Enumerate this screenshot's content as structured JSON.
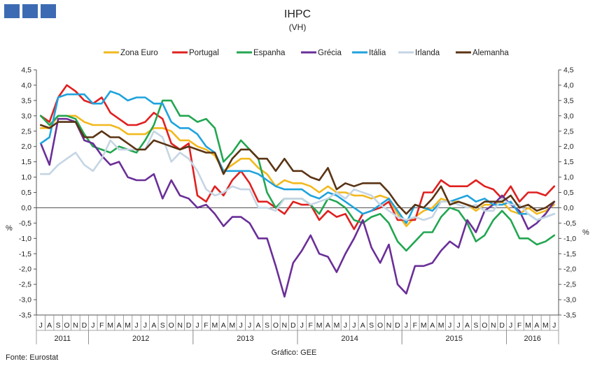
{
  "chart_data": {
    "type": "line",
    "title": "IHPC",
    "subtitle": "(VH)",
    "ylabel_left": "%",
    "ylabel_right": "%",
    "ylim": [
      -3.5,
      4.5
    ],
    "ytick_step": 0.5,
    "yticks": [
      "-3,5",
      "-3,0",
      "-2,5",
      "-2,0",
      "-1,5",
      "-1,0",
      "-0,5",
      "0,0",
      "0,5",
      "1,0",
      "1,5",
      "2,0",
      "2,5",
      "3,0",
      "3,5",
      "4,0",
      "4,5"
    ],
    "months": [
      "J",
      "A",
      "S",
      "O",
      "N",
      "D",
      "J",
      "F",
      "M",
      "A",
      "M",
      "J",
      "J",
      "A",
      "S",
      "O",
      "N",
      "D",
      "J",
      "F",
      "M",
      "A",
      "M",
      "J",
      "J",
      "A",
      "S",
      "O",
      "N",
      "D",
      "J",
      "F",
      "M",
      "A",
      "M",
      "J",
      "J",
      "A",
      "S",
      "O",
      "N",
      "D",
      "J",
      "F",
      "M",
      "A",
      "M",
      "J",
      "J",
      "A",
      "S",
      "O",
      "N",
      "D",
      "J",
      "F",
      "M",
      "A",
      "M",
      "J"
    ],
    "years": [
      {
        "label": "2011",
        "start": 0,
        "count": 6
      },
      {
        "label": "2012",
        "start": 6,
        "count": 12
      },
      {
        "label": "2013",
        "start": 18,
        "count": 12
      },
      {
        "label": "2014",
        "start": 30,
        "count": 12
      },
      {
        "label": "2015",
        "start": 42,
        "count": 12
      },
      {
        "label": "2016",
        "start": 54,
        "count": 6
      }
    ],
    "series": [
      {
        "name": "Zona Euro",
        "color": "#f2b81d",
        "values": [
          2.6,
          2.6,
          3.0,
          3.0,
          3.0,
          2.8,
          2.7,
          2.7,
          2.7,
          2.6,
          2.4,
          2.4,
          2.4,
          2.6,
          2.6,
          2.5,
          2.2,
          2.2,
          2.0,
          1.9,
          1.7,
          1.2,
          1.4,
          1.6,
          1.6,
          1.3,
          1.1,
          0.7,
          0.9,
          0.8,
          0.8,
          0.7,
          0.5,
          0.7,
          0.5,
          0.5,
          0.4,
          0.4,
          0.3,
          0.4,
          0.3,
          -0.2,
          -0.6,
          -0.3,
          -0.1,
          0.0,
          0.3,
          0.2,
          0.2,
          0.1,
          -0.1,
          0.1,
          0.1,
          0.2,
          -0.1,
          -0.2,
          0.0,
          -0.2,
          -0.1,
          0.1
        ]
      },
      {
        "name": "Portugal",
        "color": "#e02020",
        "values": [
          3.0,
          2.8,
          3.6,
          4.0,
          3.8,
          3.5,
          3.4,
          3.6,
          3.1,
          2.9,
          2.7,
          2.7,
          2.8,
          3.1,
          2.9,
          2.1,
          1.9,
          2.1,
          0.4,
          0.2,
          0.7,
          0.4,
          0.9,
          1.2,
          0.8,
          0.2,
          0.2,
          0.0,
          -0.2,
          0.2,
          0.1,
          0.1,
          -0.4,
          -0.1,
          -0.3,
          -0.2,
          -0.7,
          -0.2,
          -0.1,
          0.0,
          0.2,
          -0.4,
          -0.4,
          -0.4,
          0.5,
          0.5,
          0.9,
          0.7,
          0.7,
          0.7,
          0.9,
          0.7,
          0.6,
          0.3,
          0.7,
          0.2,
          0.5,
          0.5,
          0.4,
          0.7
        ]
      },
      {
        "name": "Espanha",
        "color": "#22a651",
        "values": [
          3.0,
          2.7,
          3.0,
          3.0,
          2.9,
          2.4,
          2.0,
          1.9,
          1.8,
          2.0,
          1.9,
          1.8,
          2.2,
          2.7,
          3.5,
          3.5,
          3.0,
          3.0,
          2.8,
          2.9,
          2.6,
          1.5,
          1.8,
          2.2,
          1.9,
          1.6,
          0.5,
          0.0,
          0.3,
          0.3,
          0.3,
          0.1,
          -0.2,
          0.3,
          0.2,
          0.0,
          -0.4,
          -0.5,
          -0.3,
          -0.2,
          -0.5,
          -1.1,
          -1.4,
          -1.1,
          -0.8,
          -0.8,
          -0.3,
          0.0,
          -0.1,
          -0.5,
          -1.1,
          -0.9,
          -0.4,
          -0.1,
          -0.4,
          -1.0,
          -1.0,
          -1.2,
          -1.1,
          -0.9
        ]
      },
      {
        "name": "Grécia",
        "color": "#6a2f98",
        "values": [
          2.1,
          1.4,
          2.9,
          2.9,
          2.8,
          2.2,
          2.1,
          1.7,
          1.4,
          1.5,
          1.0,
          0.9,
          0.9,
          1.1,
          0.3,
          0.9,
          0.4,
          0.3,
          0.0,
          0.1,
          -0.2,
          -0.6,
          -0.3,
          -0.3,
          -0.5,
          -1.0,
          -1.0,
          -1.9,
          -2.9,
          -1.8,
          -1.4,
          -0.9,
          -1.5,
          -1.6,
          -2.1,
          -1.5,
          -1.0,
          -0.4,
          -1.3,
          -1.8,
          -1.2,
          -2.5,
          -2.8,
          -1.9,
          -1.9,
          -1.8,
          -1.4,
          -1.1,
          -1.3,
          -0.4,
          -0.8,
          -0.1,
          0.1,
          0.4,
          0.1,
          -0.1,
          -0.7,
          -0.5,
          -0.2,
          0.2
        ]
      },
      {
        "name": "Itália",
        "color": "#1fa3dd",
        "values": [
          2.1,
          2.3,
          3.6,
          3.7,
          3.7,
          3.7,
          3.4,
          3.4,
          3.8,
          3.7,
          3.5,
          3.6,
          3.6,
          3.4,
          3.4,
          2.8,
          2.6,
          2.6,
          2.4,
          2.0,
          1.8,
          1.2,
          1.2,
          1.2,
          1.2,
          1.1,
          0.9,
          0.7,
          0.6,
          0.6,
          0.6,
          0.4,
          0.3,
          0.5,
          0.4,
          0.2,
          0.0,
          -0.2,
          -0.1,
          0.1,
          0.3,
          -0.1,
          -0.5,
          0.1,
          0.0,
          -0.1,
          0.2,
          0.2,
          0.3,
          0.4,
          0.2,
          0.3,
          0.1,
          0.1,
          0.2,
          -0.2,
          -0.2,
          -0.4,
          -0.3,
          -0.2
        ]
      },
      {
        "name": "Irlanda",
        "color": "#c5d5e4",
        "values": [
          1.1,
          1.1,
          1.4,
          1.6,
          1.8,
          1.4,
          1.2,
          1.6,
          2.2,
          1.9,
          1.9,
          1.9,
          1.9,
          2.5,
          2.3,
          1.5,
          1.8,
          1.6,
          1.2,
          0.6,
          0.4,
          0.5,
          0.7,
          0.6,
          0.6,
          0.0,
          0.0,
          -0.1,
          0.3,
          0.3,
          0.3,
          0.1,
          0.2,
          0.3,
          0.5,
          0.3,
          0.6,
          0.5,
          0.4,
          0.1,
          -0.1,
          -0.3,
          -0.4,
          -0.3,
          -0.4,
          -0.3,
          0.2,
          0.2,
          0.1,
          0.0,
          0.1,
          -0.1,
          -0.1,
          0.3,
          0.1,
          0.1,
          -0.2,
          -0.4,
          -0.3,
          -0.2
        ]
      },
      {
        "name": "Alemanha",
        "color": "#5a3414",
        "values": [
          2.7,
          2.6,
          2.8,
          2.8,
          2.8,
          2.3,
          2.3,
          2.5,
          2.3,
          2.3,
          2.1,
          1.9,
          1.9,
          2.2,
          2.1,
          2.0,
          1.9,
          2.0,
          1.9,
          1.8,
          1.8,
          1.1,
          1.6,
          1.9,
          1.9,
          1.6,
          1.6,
          1.2,
          1.6,
          1.2,
          1.2,
          1.0,
          0.9,
          1.3,
          0.6,
          0.8,
          0.7,
          0.8,
          0.8,
          0.8,
          0.5,
          0.1,
          -0.2,
          0.1,
          0.0,
          0.3,
          0.7,
          0.1,
          0.2,
          0.1,
          0.0,
          0.2,
          0.2,
          0.2,
          0.4,
          0.0,
          0.1,
          -0.1,
          0.0,
          0.2
        ]
      }
    ],
    "legend_position": "top",
    "source": "Fonte: Eurostat",
    "credit": "Gráfico: GEE"
  }
}
